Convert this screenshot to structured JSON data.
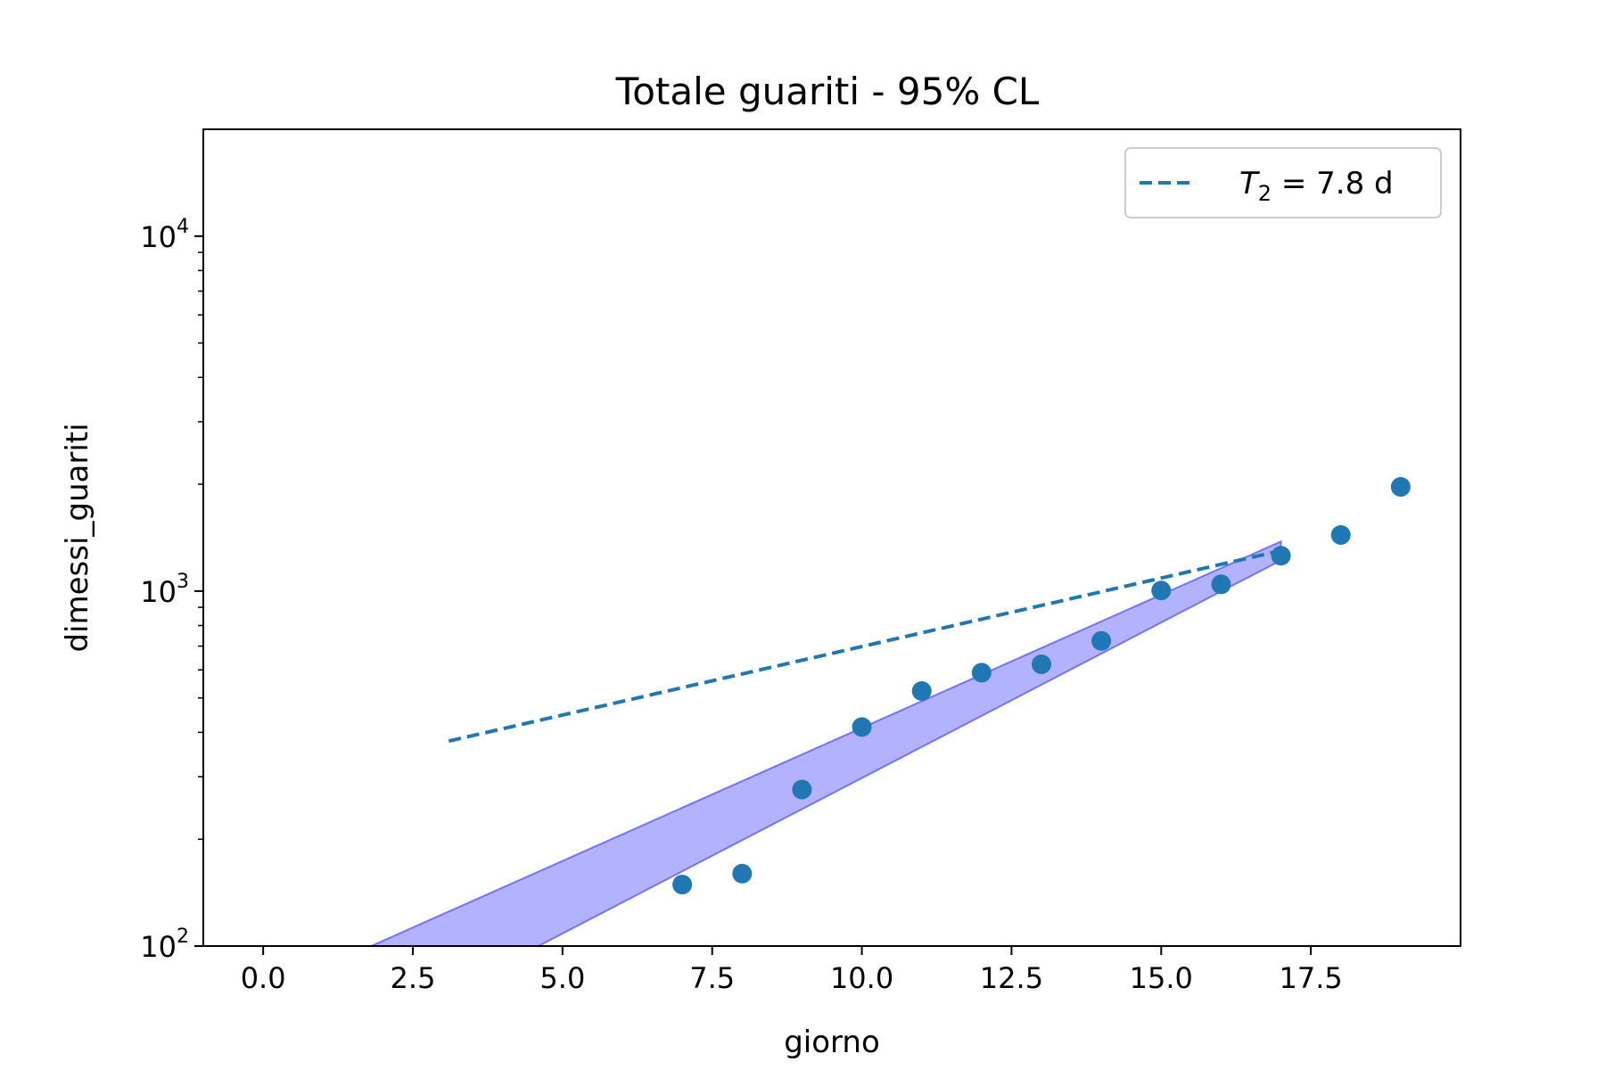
{
  "chart_data": {
    "type": "scatter",
    "title": "Totale guariti - 95% CL",
    "xlabel": "giorno",
    "ylabel": "dimessi_guariti",
    "xlim": [
      -1,
      20
    ],
    "ylim": [
      100,
      20000
    ],
    "yscale": "log",
    "x_ticks": [
      0,
      2.5,
      5,
      7.5,
      10,
      12.5,
      15,
      17.5
    ],
    "x_tick_labels": [
      "0.0",
      "2.5",
      "5.0",
      "7.5",
      "10.0",
      "12.5",
      "15.0",
      "17.5"
    ],
    "y_ticks": [
      {
        "value": 100,
        "base": "10",
        "exp": "2"
      },
      {
        "value": 1000,
        "base": "10",
        "exp": "3"
      },
      {
        "value": 10000,
        "base": "10",
        "exp": "4"
      }
    ],
    "grid": false,
    "legend_position": "top-right",
    "points": {
      "color": "#1f77b4",
      "x": [
        7,
        8,
        9,
        10,
        11,
        12,
        13,
        14,
        15,
        16,
        17,
        18,
        19
      ],
      "y": [
        149,
        160,
        276,
        414,
        523,
        589,
        622,
        724,
        1004,
        1045,
        1258,
        1439,
        1966
      ]
    },
    "fit": {
      "legend_label_var": "T",
      "legend_label_sub": "2",
      "legend_label_rest": " = 7.8 d",
      "color": "#1f77b4",
      "line_style": "dashed",
      "x_range": [
        3.1,
        17
      ],
      "anchor_x": 17,
      "anchor_y": 1300,
      "doubling_time": 7.8
    },
    "band": {
      "color": "#0000ff",
      "opacity": 0.3,
      "upper": [
        [
          1.8,
          100
        ],
        [
          17,
          1380
        ]
      ],
      "lower": [
        [
          4.6,
          100
        ],
        [
          17,
          1220
        ]
      ]
    }
  }
}
